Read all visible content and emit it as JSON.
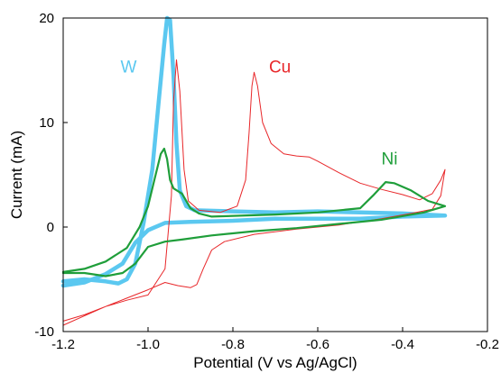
{
  "chart_data": {
    "type": "line",
    "title": "",
    "xlabel": "Potential (V vs Ag/AgCl)",
    "ylabel": "Current (mA)",
    "xlim": [
      -1.2,
      -0.2
    ],
    "ylim": [
      -10,
      20
    ],
    "xticks": [
      -1.2,
      -1.0,
      -0.8,
      -0.6,
      -0.4,
      -0.2
    ],
    "xtick_labels": [
      "-1.2",
      "-1.0",
      "-0.8",
      "-0.6",
      "-0.4",
      "-0.2"
    ],
    "yticks": [
      -10,
      0,
      10,
      20
    ],
    "ytick_labels": [
      "-10",
      "0",
      "10",
      "20"
    ],
    "grid": false,
    "legend": "none (series labeled directly on plot)",
    "series": [
      {
        "name": "W",
        "color": "#5bc8f0",
        "line_weight": "thick",
        "points": [
          [
            -1.2,
            -5.2
          ],
          [
            -1.15,
            -5.0
          ],
          [
            -1.1,
            -5.2
          ],
          [
            -1.07,
            -5.4
          ],
          [
            -1.05,
            -5.0
          ],
          [
            -1.03,
            -3.5
          ],
          [
            -1.01,
            0.5
          ],
          [
            -0.99,
            5.5
          ],
          [
            -0.975,
            12.0
          ],
          [
            -0.962,
            17.5
          ],
          [
            -0.955,
            20.0
          ],
          [
            -0.948,
            19.8
          ],
          [
            -0.94,
            14.5
          ],
          [
            -0.933,
            8.0
          ],
          [
            -0.925,
            3.5
          ],
          [
            -0.91,
            2.0
          ],
          [
            -0.89,
            1.6
          ],
          [
            -0.8,
            1.5
          ],
          [
            -0.7,
            1.4
          ],
          [
            -0.6,
            1.5
          ],
          [
            -0.5,
            1.4
          ],
          [
            -0.4,
            1.3
          ],
          [
            -0.3,
            1.1
          ],
          [
            -0.4,
            1.0
          ],
          [
            -0.5,
            0.8
          ],
          [
            -0.6,
            0.8
          ],
          [
            -0.7,
            0.8
          ],
          [
            -0.8,
            0.6
          ],
          [
            -0.9,
            0.5
          ],
          [
            -0.96,
            0.4
          ],
          [
            -1.0,
            -0.3
          ],
          [
            -1.03,
            -1.5
          ],
          [
            -1.06,
            -3.5
          ],
          [
            -1.1,
            -4.5
          ],
          [
            -1.15,
            -5.3
          ],
          [
            -1.2,
            -5.6
          ]
        ]
      },
      {
        "name": "Cu",
        "color": "#e8272a",
        "line_weight": "thin",
        "points": [
          [
            -1.2,
            -9.4
          ],
          [
            -1.15,
            -8.5
          ],
          [
            -1.1,
            -7.6
          ],
          [
            -1.05,
            -7.0
          ],
          [
            -1.0,
            -6.5
          ],
          [
            -0.96,
            -4.0
          ],
          [
            -0.945,
            3.0
          ],
          [
            -0.94,
            12.0
          ],
          [
            -0.933,
            16.0
          ],
          [
            -0.925,
            13.0
          ],
          [
            -0.915,
            5.5
          ],
          [
            -0.905,
            2.5
          ],
          [
            -0.88,
            1.6
          ],
          [
            -0.83,
            1.4
          ],
          [
            -0.79,
            2.0
          ],
          [
            -0.77,
            4.5
          ],
          [
            -0.762,
            9.0
          ],
          [
            -0.755,
            13.5
          ],
          [
            -0.75,
            14.8
          ],
          [
            -0.742,
            13.5
          ],
          [
            -0.73,
            10.0
          ],
          [
            -0.71,
            8.0
          ],
          [
            -0.68,
            7.0
          ],
          [
            -0.65,
            6.8
          ],
          [
            -0.62,
            6.7
          ],
          [
            -0.6,
            6.3
          ],
          [
            -0.55,
            5.2
          ],
          [
            -0.5,
            4.2
          ],
          [
            -0.45,
            3.6
          ],
          [
            -0.4,
            3.1
          ],
          [
            -0.36,
            2.6
          ],
          [
            -0.33,
            3.2
          ],
          [
            -0.31,
            4.5
          ],
          [
            -0.3,
            5.5
          ],
          [
            -0.31,
            3.0
          ],
          [
            -0.33,
            1.7
          ],
          [
            -0.38,
            1.3
          ],
          [
            -0.45,
            0.8
          ],
          [
            -0.55,
            0.2
          ],
          [
            -0.65,
            -0.2
          ],
          [
            -0.75,
            -0.7
          ],
          [
            -0.82,
            -1.4
          ],
          [
            -0.85,
            -2.2
          ],
          [
            -0.87,
            -4.0
          ],
          [
            -0.885,
            -5.5
          ],
          [
            -0.9,
            -5.8
          ],
          [
            -0.93,
            -5.6
          ],
          [
            -0.96,
            -5.3
          ],
          [
            -1.0,
            -6.0
          ],
          [
            -1.05,
            -6.8
          ],
          [
            -1.1,
            -7.6
          ],
          [
            -1.15,
            -8.4
          ],
          [
            -1.2,
            -9.0
          ]
        ]
      },
      {
        "name": "Ni",
        "color": "#1f9e3a",
        "line_weight": "medium",
        "points": [
          [
            -1.2,
            -4.3
          ],
          [
            -1.15,
            -4.0
          ],
          [
            -1.1,
            -3.3
          ],
          [
            -1.05,
            -2.0
          ],
          [
            -1.02,
            0.0
          ],
          [
            -1.0,
            2.0
          ],
          [
            -0.985,
            4.5
          ],
          [
            -0.97,
            7.0
          ],
          [
            -0.962,
            7.5
          ],
          [
            -0.955,
            6.5
          ],
          [
            -0.948,
            4.5
          ],
          [
            -0.94,
            3.7
          ],
          [
            -0.92,
            3.2
          ],
          [
            -0.9,
            1.8
          ],
          [
            -0.88,
            1.3
          ],
          [
            -0.85,
            1.0
          ],
          [
            -0.7,
            1.2
          ],
          [
            -0.6,
            1.4
          ],
          [
            -0.5,
            1.8
          ],
          [
            -0.47,
            3.0
          ],
          [
            -0.44,
            4.3
          ],
          [
            -0.42,
            4.2
          ],
          [
            -0.38,
            3.5
          ],
          [
            -0.34,
            2.5
          ],
          [
            -0.3,
            2.0
          ],
          [
            -0.35,
            1.4
          ],
          [
            -0.45,
            0.7
          ],
          [
            -0.55,
            0.3
          ],
          [
            -0.65,
            -0.1
          ],
          [
            -0.75,
            -0.4
          ],
          [
            -0.85,
            -0.8
          ],
          [
            -0.92,
            -1.2
          ],
          [
            -0.96,
            -1.4
          ],
          [
            -1.0,
            -1.9
          ],
          [
            -1.03,
            -3.5
          ],
          [
            -1.06,
            -4.4
          ],
          [
            -1.1,
            -4.7
          ],
          [
            -1.15,
            -4.4
          ],
          [
            -1.2,
            -4.4
          ]
        ]
      }
    ],
    "annotations": [
      {
        "text": "W",
        "x": -1.065,
        "y": 14.8,
        "color": "#5bc8f0"
      },
      {
        "text": "Cu",
        "x": -0.715,
        "y": 14.8,
        "color": "#e8272a"
      },
      {
        "text": "Ni",
        "x": -0.45,
        "y": 6.0,
        "color": "#1f9e3a"
      }
    ]
  }
}
